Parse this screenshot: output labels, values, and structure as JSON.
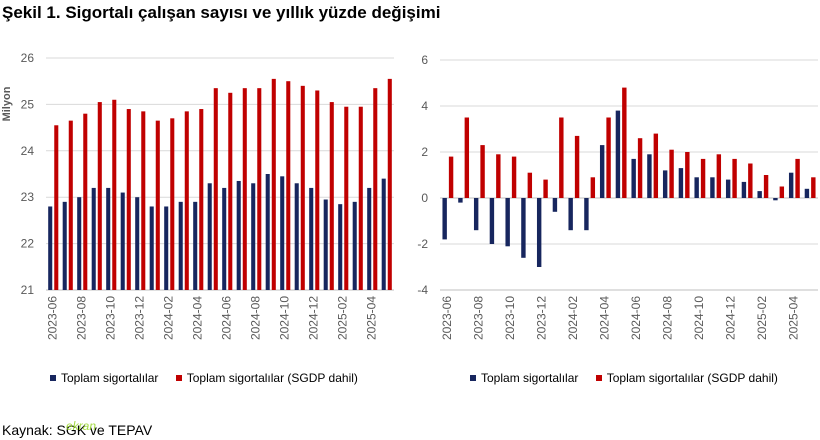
{
  "figure_title": "Şekil 1. Sigortalı çalışan sayısı ve yıllık yüzde değişimi",
  "source": "Kaynak: SGK ve TEPAV",
  "watermark": "ekran",
  "colors": {
    "series1": "#17265e",
    "series2": "#c00000",
    "grid": "#d9d9d9",
    "axis": "#bfbfbf",
    "text": "#595959"
  },
  "chart_data": [
    {
      "type": "bar",
      "ylabel": "Milyon",
      "ylim": [
        21,
        26
      ],
      "yticks": [
        21,
        22,
        23,
        24,
        25,
        26
      ],
      "grid": true,
      "legend": "bottom",
      "categories": [
        "2023-06",
        "2023-07",
        "2023-08",
        "2023-09",
        "2023-10",
        "2023-11",
        "2023-12",
        "2024-01",
        "2024-02",
        "2024-03",
        "2024-04",
        "2024-05",
        "2024-06",
        "2024-07",
        "2024-08",
        "2024-09",
        "2024-10",
        "2024-11",
        "2024-12",
        "2025-01",
        "2025-02",
        "2025-03",
        "2025-04",
        "2025-05"
      ],
      "tick_labels": [
        "2023-06",
        "2023-08",
        "2023-10",
        "2023-12",
        "2024-02",
        "2024-04",
        "2024-06",
        "2024-08",
        "2024-10",
        "2024-12",
        "2025-02",
        "2025-04"
      ],
      "series": [
        {
          "name": "Toplam sigortalılar",
          "values": [
            22.8,
            22.9,
            23.0,
            23.2,
            23.2,
            23.1,
            23.0,
            22.8,
            22.8,
            22.9,
            22.9,
            23.3,
            23.2,
            23.35,
            23.3,
            23.5,
            23.45,
            23.3,
            23.2,
            22.95,
            22.85,
            22.9,
            23.2,
            23.4
          ]
        },
        {
          "name": "Toplam sigortalılar (SGDP dahil)",
          "values": [
            24.55,
            24.65,
            24.8,
            25.05,
            25.1,
            24.9,
            24.85,
            24.65,
            24.7,
            24.85,
            24.9,
            25.35,
            25.25,
            25.35,
            25.35,
            25.55,
            25.5,
            25.4,
            25.3,
            25.05,
            24.95,
            24.95,
            25.35,
            25.55
          ]
        }
      ]
    },
    {
      "type": "bar",
      "ylim": [
        -4,
        6
      ],
      "yticks": [
        -4,
        -2,
        0,
        2,
        4,
        6
      ],
      "grid": true,
      "legend": "bottom",
      "categories": [
        "2023-06",
        "2023-07",
        "2023-08",
        "2023-09",
        "2023-10",
        "2023-11",
        "2023-12",
        "2024-01",
        "2024-02",
        "2024-03",
        "2024-04",
        "2024-05",
        "2024-06",
        "2024-07",
        "2024-08",
        "2024-09",
        "2024-10",
        "2024-11",
        "2024-12",
        "2025-01",
        "2025-02",
        "2025-03",
        "2025-04",
        "2025-05"
      ],
      "tick_labels": [
        "2023-06",
        "2023-08",
        "2023-10",
        "2023-12",
        "2024-02",
        "2024-04",
        "2024-06",
        "2024-08",
        "2024-10",
        "2024-12",
        "2025-02",
        "2025-04"
      ],
      "series": [
        {
          "name": "Toplam sigortalılar",
          "values": [
            -1.8,
            -0.2,
            -1.4,
            -2.0,
            -2.1,
            -2.6,
            -3.0,
            -0.6,
            -1.4,
            -1.4,
            2.3,
            3.8,
            1.7,
            1.9,
            1.2,
            1.3,
            0.9,
            0.9,
            0.8,
            0.7,
            0.3,
            -0.1,
            1.1,
            0.4
          ]
        },
        {
          "name": "Toplam sigortalılar (SGDP dahil)",
          "values": [
            1.8,
            3.5,
            2.3,
            1.9,
            1.8,
            1.1,
            0.8,
            3.5,
            2.7,
            0.9,
            3.5,
            4.8,
            2.6,
            2.8,
            2.1,
            2.0,
            1.7,
            1.9,
            1.7,
            1.5,
            1.0,
            0.5,
            1.7,
            0.9
          ]
        }
      ]
    }
  ]
}
